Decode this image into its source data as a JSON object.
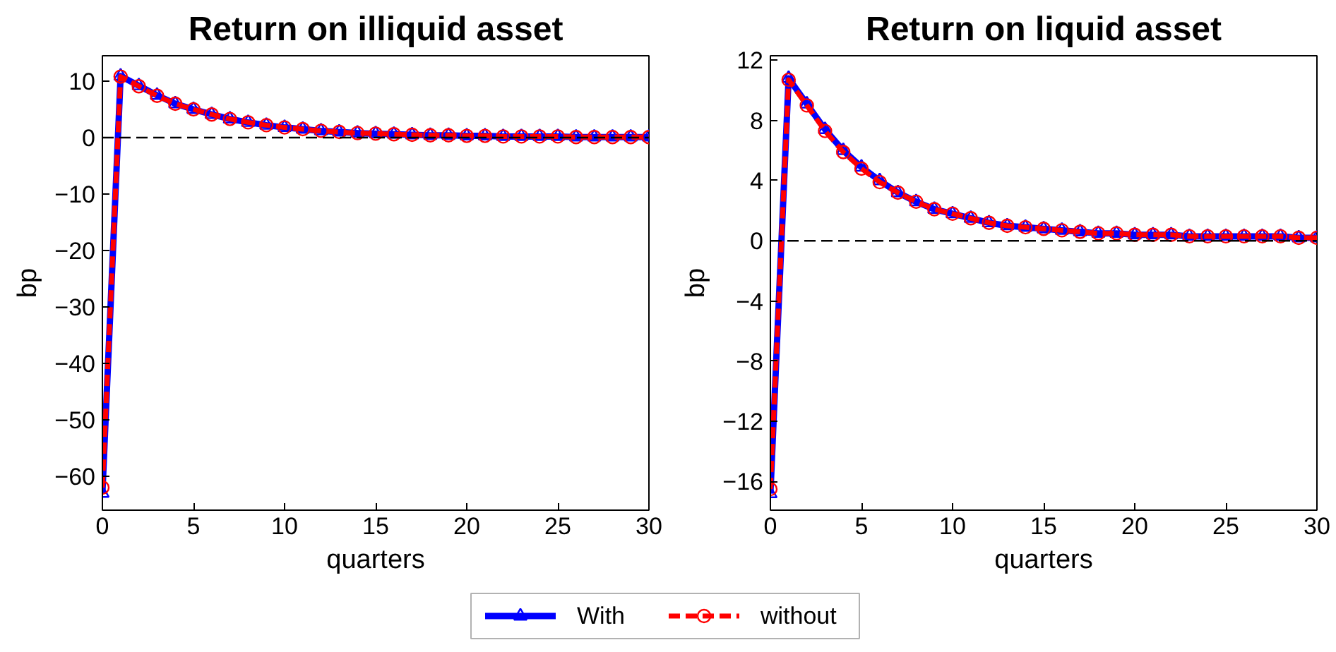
{
  "chart_data": [
    {
      "type": "line",
      "title": "Return on illiquid asset",
      "xlabel": "quarters",
      "ylabel": "bp",
      "x": [
        0,
        1,
        2,
        3,
        4,
        5,
        6,
        7,
        8,
        9,
        10,
        11,
        12,
        13,
        14,
        15,
        16,
        17,
        18,
        19,
        20,
        21,
        22,
        23,
        24,
        25,
        26,
        27,
        28,
        29,
        30
      ],
      "series": [
        {
          "name": "With",
          "color": "#0000ff",
          "marker": "triangle",
          "line_style": "solid",
          "values": [
            -63,
            10.9,
            9.2,
            7.5,
            6.0,
            5.0,
            4.1,
            3.3,
            2.7,
            2.2,
            1.8,
            1.5,
            1.2,
            1.0,
            0.8,
            0.7,
            0.6,
            0.5,
            0.4,
            0.4,
            0.3,
            0.3,
            0.2,
            0.2,
            0.2,
            0.2,
            0.1,
            0.1,
            0.1,
            0.1,
            0.1
          ]
        },
        {
          "name": "without",
          "color": "#ff0000",
          "marker": "circle",
          "line_style": "dashed",
          "values": [
            -62,
            10.8,
            9.1,
            7.4,
            6.0,
            5.0,
            4.1,
            3.3,
            2.7,
            2.2,
            1.8,
            1.5,
            1.2,
            1.0,
            0.8,
            0.7,
            0.6,
            0.5,
            0.4,
            0.4,
            0.3,
            0.3,
            0.2,
            0.2,
            0.2,
            0.2,
            0.1,
            0.1,
            0.1,
            0.1,
            0.1
          ]
        }
      ],
      "xlim": [
        0,
        30
      ],
      "xticks": [
        0,
        5,
        10,
        15,
        20,
        25,
        30
      ],
      "ylim": [
        -66,
        14.5
      ],
      "yticks": [
        -60,
        -50,
        -40,
        -30,
        -20,
        -10,
        0,
        10
      ],
      "ref_lines": [
        {
          "axis": "y",
          "value": 0,
          "color": "#000000",
          "line_style": "dashed"
        }
      ],
      "grid": false,
      "legend": "bottom"
    },
    {
      "type": "line",
      "title": "Return on liquid asset",
      "xlabel": "quarters",
      "ylabel": "bp",
      "x": [
        0,
        1,
        2,
        3,
        4,
        5,
        6,
        7,
        8,
        9,
        10,
        11,
        12,
        13,
        14,
        15,
        16,
        17,
        18,
        19,
        20,
        21,
        22,
        23,
        24,
        25,
        26,
        27,
        28,
        29,
        30
      ],
      "series": [
        {
          "color": "#0000ff",
          "marker": "triangle",
          "line_style": "solid",
          "values": [
            -16.8,
            10.8,
            9.1,
            7.4,
            6.0,
            4.9,
            4.0,
            3.2,
            2.6,
            2.1,
            1.8,
            1.5,
            1.2,
            1.0,
            0.9,
            0.8,
            0.7,
            0.6,
            0.5,
            0.5,
            0.4,
            0.4,
            0.4,
            0.3,
            0.3,
            0.3,
            0.3,
            0.3,
            0.3,
            0.2,
            0.2
          ]
        },
        {
          "color": "#ff0000",
          "marker": "circle",
          "line_style": "dashed",
          "values": [
            -16.5,
            10.7,
            9.0,
            7.3,
            5.9,
            4.8,
            3.9,
            3.2,
            2.6,
            2.1,
            1.8,
            1.5,
            1.2,
            1.0,
            0.9,
            0.8,
            0.7,
            0.6,
            0.5,
            0.5,
            0.4,
            0.4,
            0.4,
            0.3,
            0.3,
            0.3,
            0.3,
            0.3,
            0.3,
            0.2,
            0.2
          ]
        }
      ],
      "xlim": [
        0,
        30
      ],
      "xticks": [
        0,
        5,
        10,
        15,
        20,
        25,
        30
      ],
      "ylim": [
        -17.9,
        12.3
      ],
      "yticks": [
        -16,
        -12,
        -8,
        -4,
        0,
        4,
        8,
        12
      ],
      "ref_lines": [
        {
          "axis": "y",
          "value": 0,
          "color": "#000000",
          "line_style": "dashed"
        }
      ],
      "grid": false
    }
  ]
}
